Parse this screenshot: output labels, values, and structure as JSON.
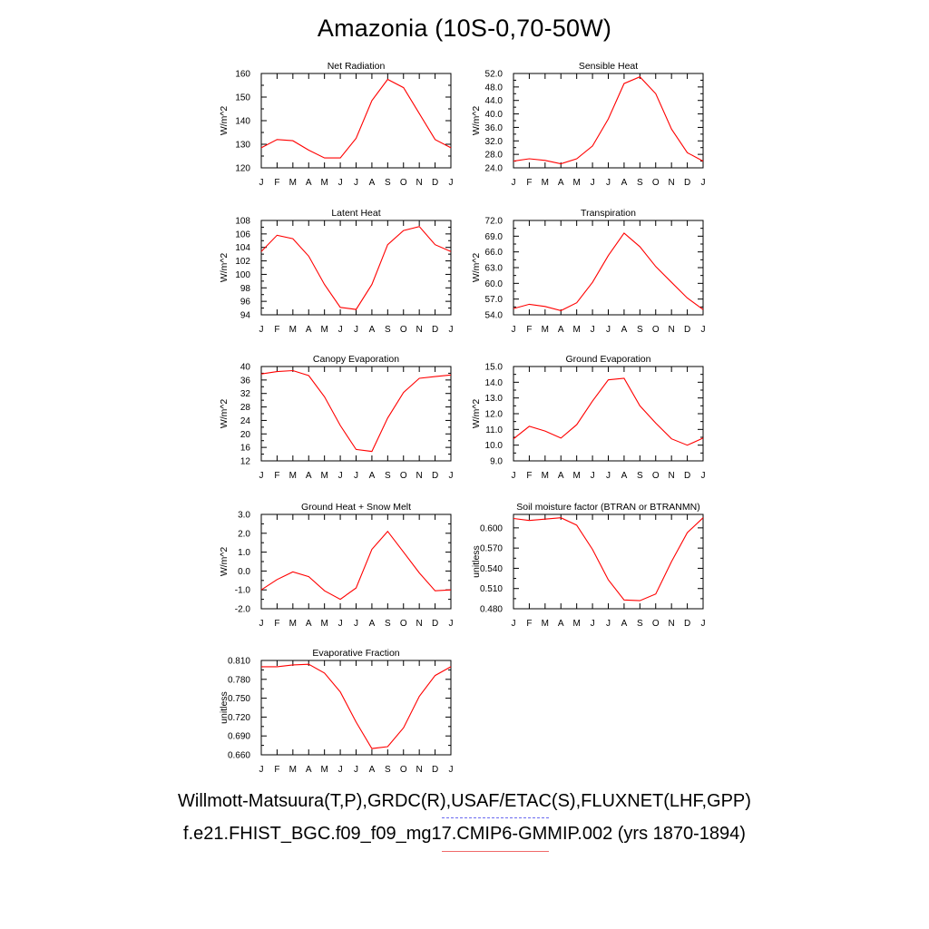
{
  "page": {
    "title": "Amazonia (10S-0,70-50W)",
    "footer_obs": "Willmott-Matsuura(T,P),GRDC(R),USAF/ETAC(S),FLUXNET(LHF,GPP)",
    "footer_model": "f.e21.FHIST_BGC.f09_f09_mg17.CMIP6-GMMIP.002 (yrs 1870-1894)",
    "obs_line_color": "#6a6af0",
    "model_line_color": "#f06a6a"
  },
  "chart_data": [
    {
      "type": "line",
      "title": "Net Radiation",
      "ylabel": "W/m^2",
      "x": [
        "J",
        "F",
        "M",
        "A",
        "M",
        "J",
        "J",
        "A",
        "S",
        "O",
        "N",
        "D",
        "J"
      ],
      "ylim": [
        120,
        160
      ],
      "yticks": [
        120,
        130,
        140,
        150,
        160
      ],
      "tick_labels": [
        "120",
        "130",
        "140",
        "150",
        "160"
      ],
      "series": [
        {
          "color": "#ff0000",
          "values": [
            128.5,
            132,
            131.5,
            127.5,
            124.2,
            124.2,
            132.5,
            148.5,
            157.5,
            154,
            143,
            132,
            128.5
          ]
        }
      ],
      "grid": false
    },
    {
      "type": "line",
      "title": "Sensible Heat",
      "ylabel": "W/m^2",
      "x": [
        "J",
        "F",
        "M",
        "A",
        "M",
        "J",
        "J",
        "A",
        "S",
        "O",
        "N",
        "D",
        "J"
      ],
      "ylim": [
        24,
        52
      ],
      "yticks": [
        24,
        28,
        32,
        36,
        40,
        44,
        48,
        52
      ],
      "tick_labels": [
        "24.0",
        "28.0",
        "32.0",
        "36.0",
        "40.0",
        "44.0",
        "48.0",
        "52.0"
      ],
      "series": [
        {
          "color": "#ff0000",
          "values": [
            26,
            26.7,
            26.2,
            25.2,
            26.7,
            30.5,
            38.5,
            49,
            51,
            46,
            35.5,
            28.5,
            26
          ]
        }
      ],
      "grid": false
    },
    {
      "type": "line",
      "title": "Latent Heat",
      "ylabel": "W/m^2",
      "x": [
        "J",
        "F",
        "M",
        "A",
        "M",
        "J",
        "J",
        "A",
        "S",
        "O",
        "N",
        "D",
        "J"
      ],
      "ylim": [
        94,
        108
      ],
      "yticks": [
        94,
        96,
        98,
        100,
        102,
        104,
        106,
        108
      ],
      "tick_labels": [
        "94",
        "96",
        "98",
        "100",
        "102",
        "104",
        "106",
        "108"
      ],
      "series": [
        {
          "color": "#ff0000",
          "values": [
            103.4,
            105.8,
            105.3,
            102.7,
            98.5,
            95.1,
            94.8,
            98.5,
            104.4,
            106.5,
            107.1,
            104.4,
            103.4
          ]
        }
      ],
      "grid": false
    },
    {
      "type": "line",
      "title": "Transpiration",
      "ylabel": "W/m^2",
      "x": [
        "J",
        "F",
        "M",
        "A",
        "M",
        "J",
        "J",
        "A",
        "S",
        "O",
        "N",
        "D",
        "J"
      ],
      "ylim": [
        54,
        72
      ],
      "yticks": [
        54,
        57,
        60,
        63,
        66,
        69,
        72
      ],
      "tick_labels": [
        "54.0",
        "57.0",
        "60.0",
        "63.0",
        "66.0",
        "69.0",
        "72.0"
      ],
      "series": [
        {
          "color": "#ff0000",
          "values": [
            55.2,
            56,
            55.6,
            54.8,
            56.3,
            60.2,
            65.3,
            69.6,
            67,
            63.2,
            60.2,
            57.2,
            55
          ]
        }
      ],
      "grid": false
    },
    {
      "type": "line",
      "title": "Canopy Evaporation",
      "ylabel": "W/m^2",
      "x": [
        "J",
        "F",
        "M",
        "A",
        "M",
        "J",
        "J",
        "A",
        "S",
        "O",
        "N",
        "D",
        "J"
      ],
      "ylim": [
        12,
        40
      ],
      "yticks": [
        12,
        16,
        20,
        24,
        28,
        32,
        36,
        40
      ],
      "tick_labels": [
        "12",
        "16",
        "20",
        "24",
        "28",
        "32",
        "36",
        "40"
      ],
      "series": [
        {
          "color": "#ff0000",
          "values": [
            37.8,
            38.5,
            38.8,
            37.3,
            31,
            22.5,
            15.4,
            14.8,
            24.7,
            32.3,
            36.5,
            37,
            37.5
          ]
        }
      ],
      "grid": false
    },
    {
      "type": "line",
      "title": "Ground Evaporation",
      "ylabel": "W/m^2",
      "x": [
        "J",
        "F",
        "M",
        "A",
        "M",
        "J",
        "J",
        "A",
        "S",
        "O",
        "N",
        "D",
        "J"
      ],
      "ylim": [
        9,
        15
      ],
      "yticks": [
        9,
        10,
        11,
        12,
        13,
        14,
        15
      ],
      "tick_labels": [
        "9.0",
        "10.0",
        "11.0",
        "12.0",
        "13.0",
        "14.0",
        "15.0"
      ],
      "series": [
        {
          "color": "#ff0000",
          "values": [
            10.4,
            11.2,
            10.9,
            10.45,
            11.3,
            12.8,
            14.15,
            14.25,
            12.5,
            11.4,
            10.4,
            10,
            10.45
          ]
        }
      ],
      "grid": false
    },
    {
      "type": "line",
      "title": "Ground Heat + Snow Melt",
      "ylabel": "W/m^2",
      "x": [
        "J",
        "F",
        "M",
        "A",
        "M",
        "J",
        "J",
        "A",
        "S",
        "O",
        "N",
        "D",
        "J"
      ],
      "ylim": [
        -2,
        3
      ],
      "yticks": [
        -2,
        -1,
        0,
        1,
        2,
        3
      ],
      "tick_labels": [
        "-2.0",
        "-1.0",
        "0.0",
        "1.0",
        "2.0",
        "3.0"
      ],
      "series": [
        {
          "color": "#ff0000",
          "values": [
            -1,
            -0.45,
            -0.05,
            -0.3,
            -1.05,
            -1.5,
            -0.9,
            1.15,
            2.1,
            1.0,
            -0.1,
            -1.05,
            -1
          ]
        }
      ],
      "grid": false
    },
    {
      "type": "line",
      "title": "Soil moisture factor (BTRAN or BTRANMN)",
      "ylabel": "unitless",
      "x": [
        "J",
        "F",
        "M",
        "A",
        "M",
        "J",
        "J",
        "A",
        "S",
        "O",
        "N",
        "D",
        "J"
      ],
      "ylim": [
        0.48,
        0.62
      ],
      "yticks": [
        0.48,
        0.51,
        0.54,
        0.57,
        0.6
      ],
      "tick_labels": [
        "0.480",
        "0.510",
        "0.540",
        "0.570",
        "0.600"
      ],
      "series": [
        {
          "color": "#ff0000",
          "values": [
            0.614,
            0.611,
            0.613,
            0.615,
            0.604,
            0.568,
            0.523,
            0.493,
            0.492,
            0.502,
            0.55,
            0.593,
            0.615
          ]
        }
      ],
      "grid": false
    },
    {
      "type": "line",
      "title": "Evaporative Fraction",
      "ylabel": "unitless",
      "x": [
        "J",
        "F",
        "M",
        "A",
        "M",
        "J",
        "J",
        "A",
        "S",
        "O",
        "N",
        "D",
        "J"
      ],
      "ylim": [
        0.66,
        0.81
      ],
      "yticks": [
        0.66,
        0.69,
        0.72,
        0.75,
        0.78,
        0.81
      ],
      "tick_labels": [
        "0.660",
        "0.690",
        "0.720",
        "0.750",
        "0.780",
        "0.810"
      ],
      "series": [
        {
          "color": "#ff0000",
          "values": [
            0.8,
            0.8,
            0.803,
            0.804,
            0.79,
            0.76,
            0.712,
            0.67,
            0.673,
            0.703,
            0.753,
            0.786,
            0.8
          ]
        }
      ],
      "grid": false
    }
  ]
}
